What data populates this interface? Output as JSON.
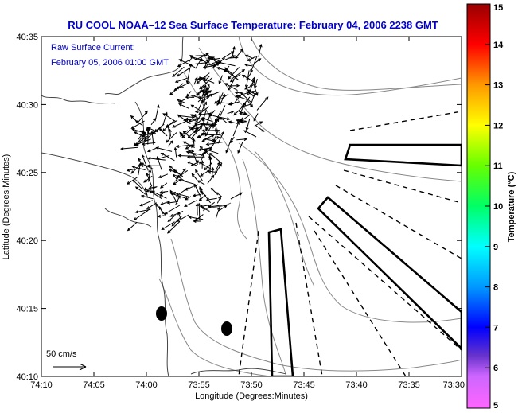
{
  "title": "RU COOL  NOAA–12  Sea Surface Temperature:  February 04, 2006 2238 GMT",
  "annotation": {
    "line1": "Raw Surface Current:",
    "line2": "February 05, 2006 01:00 GMT"
  },
  "scale_label": "50 cm/s",
  "x_axis": {
    "label": "Longitude (Degrees:Minutes)",
    "ticks": [
      "74:10",
      "74:05",
      "74:00",
      "73:55",
      "73:50",
      "73:45",
      "73:40",
      "73:35",
      "73:30"
    ]
  },
  "y_axis": {
    "label": "Latitude (Degrees:Minutes)",
    "ticks": [
      "40:35",
      "40:30",
      "40:25",
      "40:20",
      "40:15",
      "40:10"
    ]
  },
  "colorbar": {
    "label": "Temperature (°C)",
    "ticks": [
      "15",
      "14",
      "13",
      "12",
      "11",
      "10",
      "9",
      "8",
      "7",
      "6",
      "5"
    ],
    "colors": [
      "#ff66ff",
      "#6633cc",
      "#0000ff",
      "#0099ff",
      "#00ffff",
      "#00ff66",
      "#66ff00",
      "#ffff00",
      "#ff9900",
      "#ff0000",
      "#990000"
    ]
  }
}
